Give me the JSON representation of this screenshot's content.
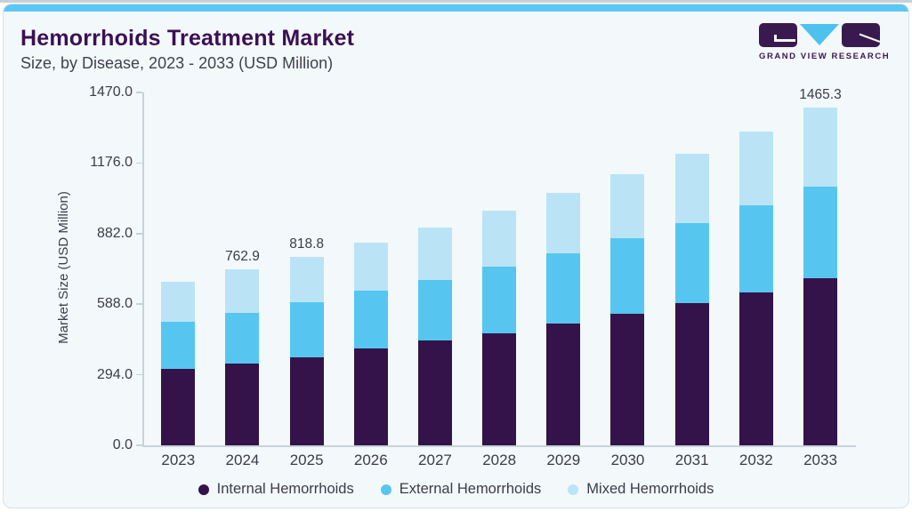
{
  "page": {
    "title": "Hemorrhoids Treatment Market",
    "subtitle": "Size, by Disease, 2023 - 2033 (USD Million)",
    "logo_text": "GRAND VIEW RESEARCH",
    "colors": {
      "accent_strip": "#5BC7F3",
      "card_background": "#F3F8FB",
      "title_purple": "#3B1053",
      "logo_purple": "#391A4E",
      "logo_cyan": "#4EC2EF",
      "axis_gray": "#C7D2DA",
      "text_gray": "#3C3C46"
    }
  },
  "chart_data": {
    "type": "bar",
    "stacked": true,
    "title": "Hemorrhoids Treatment Market",
    "subtitle": "Size, by Disease, 2023 - 2033 (USD Million)",
    "xlabel": "",
    "ylabel": "Market Size (USD Million)",
    "ylim": [
      0,
      1470
    ],
    "ytick_labels": [
      "0.0",
      "294.0",
      "588.0",
      "882.0",
      "1176.0",
      "1470.0"
    ],
    "grid": false,
    "legend_position": "bottom",
    "categories": [
      "2023",
      "2024",
      "2025",
      "2026",
      "2027",
      "2028",
      "2029",
      "2030",
      "2031",
      "2032",
      "2033"
    ],
    "series": [
      {
        "name": "Internal Hemorrhoids",
        "color": "#33134A",
        "values": [
          332.1,
          353.6,
          383.8,
          420.1,
          453.5,
          487.6,
          528.8,
          569.7,
          617.0,
          664.5,
          723.5
        ]
      },
      {
        "name": "External Hemorrhoids",
        "color": "#56C6F0",
        "values": [
          202.6,
          222.2,
          237.0,
          249.8,
          265.4,
          288.0,
          304.4,
          328.5,
          348.5,
          377.5,
          398.9
        ]
      },
      {
        "name": "Mixed Hemorrhoids",
        "color": "#BAE4F6",
        "values": [
          176.2,
          187.1,
          198.0,
          210.7,
          228.1,
          242.9,
          262.1,
          279.9,
          301.4,
          320.3,
          342.9
        ]
      }
    ],
    "totals": [
      710.9,
      762.9,
      818.8,
      880.6,
      947.0,
      1018.5,
      1095.3,
      1178.1,
      1266.9,
      1362.3,
      1465.3
    ],
    "data_labels": {
      "2024": "762.9",
      "2025": "818.8",
      "2033": "1465.3"
    }
  }
}
